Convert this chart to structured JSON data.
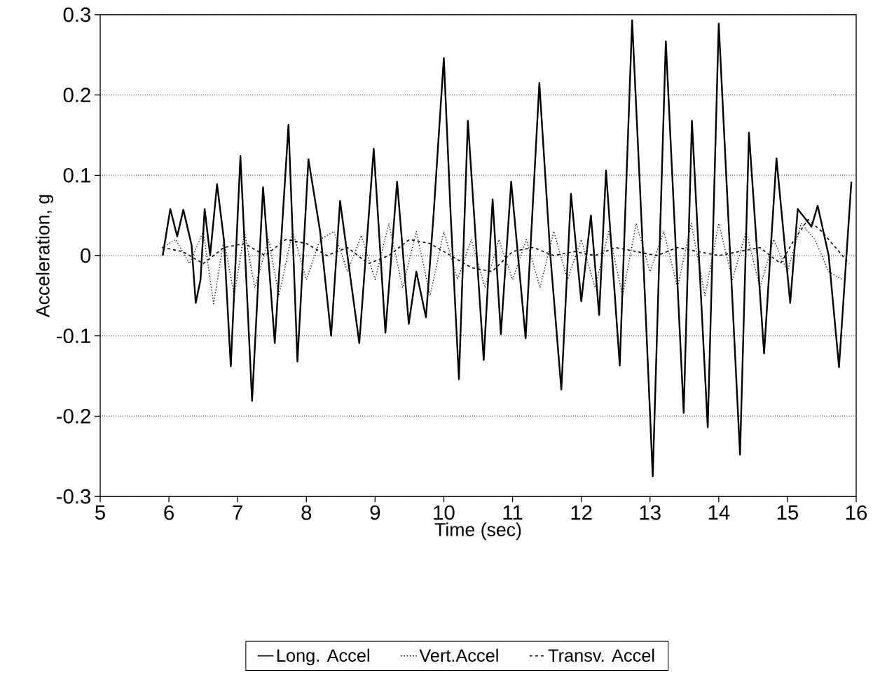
{
  "chart_data": {
    "type": "line",
    "xlabel": "Time (sec)",
    "ylabel": "Acceleration, g",
    "xlim": [
      5,
      16
    ],
    "ylim": [
      -0.3,
      0.3
    ],
    "xticks": [
      5,
      6,
      7,
      8,
      9,
      10,
      11,
      12,
      13,
      14,
      15,
      16
    ],
    "yticks": [
      -0.3,
      -0.2,
      -0.1,
      0,
      0.1,
      0.2,
      0.3
    ],
    "grid": "y",
    "legend": "bottom",
    "series": [
      {
        "name": "Long. Accel",
        "color": "#000000",
        "line_style": "solid",
        "x": [
          5.91,
          6.02,
          6.12,
          6.21,
          6.33,
          6.39,
          6.46,
          6.52,
          6.6,
          6.7,
          6.8,
          6.9,
          7.04,
          7.21,
          7.37,
          7.54,
          7.74,
          7.87,
          8.03,
          8.2,
          8.36,
          8.49,
          8.77,
          8.98,
          9.15,
          9.32,
          9.49,
          9.6,
          9.74,
          9.85,
          10.0,
          10.1,
          10.22,
          10.35,
          10.58,
          10.71,
          10.83,
          10.98,
          11.19,
          11.39,
          11.55,
          11.71,
          11.85,
          12.0,
          12.14,
          12.26,
          12.36,
          12.56,
          12.74,
          12.9,
          13.04,
          13.23,
          13.49,
          13.61,
          13.84,
          14.0,
          14.31,
          14.44,
          14.66,
          14.84,
          15.04,
          15.15,
          15.35,
          15.44,
          15.6,
          15.75,
          15.93
        ],
        "values": [
          0.0,
          0.058,
          0.024,
          0.057,
          0.013,
          -0.059,
          -0.03,
          0.058,
          0.0,
          0.089,
          0.02,
          -0.138,
          0.124,
          -0.181,
          0.085,
          -0.109,
          0.163,
          -0.132,
          0.12,
          0.03,
          -0.1,
          0.068,
          -0.109,
          0.133,
          -0.096,
          0.092,
          -0.085,
          -0.02,
          -0.077,
          0.05,
          0.246,
          0.05,
          -0.154,
          0.168,
          -0.13,
          0.07,
          -0.098,
          0.092,
          -0.103,
          0.215,
          0.0,
          -0.167,
          0.077,
          -0.057,
          0.05,
          -0.074,
          0.106,
          -0.137,
          0.293,
          0.0,
          -0.275,
          0.267,
          -0.196,
          0.168,
          -0.214,
          0.289,
          -0.248,
          0.153,
          -0.122,
          0.121,
          -0.059,
          0.058,
          0.036,
          0.062,
          0.0,
          -0.139,
          0.092
        ]
      },
      {
        "name": "Vert.Accel",
        "color": "#000000",
        "line_style": "dotted",
        "x": [
          5.9,
          6.1,
          6.3,
          6.5,
          6.65,
          6.8,
          6.95,
          7.1,
          7.25,
          7.45,
          7.6,
          7.8,
          8.0,
          8.2,
          8.4,
          8.6,
          8.8,
          9.0,
          9.2,
          9.4,
          9.6,
          9.8,
          10.0,
          10.2,
          10.4,
          10.6,
          10.8,
          11.0,
          11.2,
          11.4,
          11.6,
          11.8,
          12.0,
          12.2,
          12.4,
          12.6,
          12.8,
          13.0,
          13.2,
          13.4,
          13.6,
          13.8,
          14.0,
          14.2,
          14.4,
          14.6,
          14.8,
          15.0,
          15.2,
          15.4,
          15.6,
          15.8
        ],
        "values": [
          0.01,
          0.02,
          -0.01,
          0.03,
          -0.06,
          0.02,
          -0.05,
          0.03,
          -0.04,
          0.02,
          -0.05,
          0.03,
          -0.03,
          0.02,
          0.03,
          -0.02,
          0.025,
          -0.03,
          0.04,
          -0.04,
          0.03,
          -0.05,
          0.03,
          -0.03,
          0.02,
          -0.04,
          0.02,
          -0.03,
          0.02,
          -0.04,
          0.03,
          -0.03,
          0.02,
          -0.04,
          0.03,
          -0.05,
          0.04,
          -0.02,
          0.03,
          -0.04,
          0.04,
          -0.05,
          0.04,
          -0.03,
          0.03,
          -0.04,
          0.02,
          -0.02,
          0.04,
          0.02,
          -0.02,
          -0.03
        ]
      },
      {
        "name": "Transv. Accel",
        "color": "#000000",
        "line_style": "dashed",
        "x": [
          5.9,
          6.2,
          6.5,
          6.8,
          7.1,
          7.4,
          7.7,
          8.0,
          8.3,
          8.6,
          8.9,
          9.2,
          9.5,
          9.8,
          10.1,
          10.4,
          10.7,
          11.0,
          11.3,
          11.6,
          11.9,
          12.2,
          12.5,
          12.8,
          13.1,
          13.4,
          13.7,
          14.0,
          14.3,
          14.6,
          14.9,
          15.1,
          15.3,
          15.5,
          15.7,
          15.9
        ],
        "values": [
          0.01,
          0.005,
          -0.01,
          0.01,
          0.015,
          0.0,
          0.02,
          0.015,
          0.0,
          0.01,
          -0.01,
          0.0,
          0.02,
          0.015,
          0.0,
          -0.015,
          -0.02,
          0.005,
          0.01,
          0.0,
          0.005,
          0.0,
          0.01,
          0.005,
          0.0,
          0.01,
          0.005,
          0.0,
          0.005,
          0.01,
          -0.01,
          0.02,
          0.045,
          0.03,
          0.01,
          -0.01
        ]
      }
    ]
  }
}
